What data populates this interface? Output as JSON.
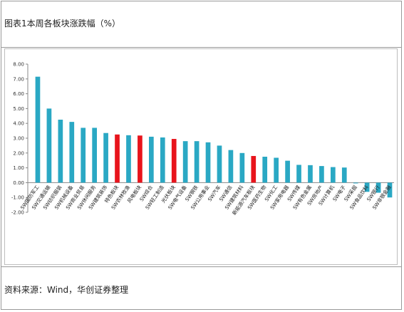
{
  "header": {
    "title": "图表1本周各板块涨跌幅（%）"
  },
  "footer": {
    "source": "资料来源：Wind，华创证券整理"
  },
  "colors": {
    "normal_bar": "#2aa8c4",
    "highlight_bar": "#e8141c",
    "axis": "#888888"
  },
  "chart_data": {
    "type": "bar",
    "title": "",
    "xlabel": "",
    "ylabel": "",
    "ylim": [
      -2.0,
      8.0
    ],
    "yticks": [
      "8.00",
      "7.00",
      "6.00",
      "5.00",
      "4.00",
      "3.00",
      "2.00",
      "1.00",
      "0.00",
      "-1.00",
      "-2.00"
    ],
    "grid": false,
    "categories": [
      "SW国防军工",
      "SW交通运输",
      "SW纺织服装",
      "SW机械设备",
      "SW商业贸易",
      "SW休闲服务",
      "SW建筑装饰",
      "特色板块",
      "SW农林牧渔",
      "风电板块",
      "SW综合",
      "SW轻工制造",
      "光伏板块",
      "SW电气设备",
      "SW钢铁",
      "SW公用事业",
      "SW汽车",
      "SW通信",
      "SW建筑材料",
      "新能源汽车板块",
      "SW医药生物",
      "SW化工",
      "SW家用电器",
      "SW传媒",
      "SW有色金属",
      "SW房地产",
      "SW计算机",
      "SW电子",
      "SW采掘",
      "SW食品饮料",
      "SW银行",
      "SW非银金融"
    ],
    "values": [
      7.15,
      5.0,
      4.25,
      4.1,
      3.7,
      3.7,
      3.35,
      3.25,
      3.2,
      3.18,
      3.1,
      3.05,
      2.95,
      2.8,
      2.8,
      2.72,
      2.5,
      2.2,
      2.0,
      1.8,
      1.75,
      1.68,
      1.48,
      1.2,
      1.18,
      1.12,
      1.05,
      1.02,
      -0.05,
      -0.62,
      -0.68,
      -1.0
    ],
    "highlighted": [
      false,
      false,
      false,
      false,
      false,
      false,
      false,
      true,
      false,
      true,
      false,
      false,
      true,
      false,
      false,
      false,
      false,
      false,
      false,
      true,
      false,
      false,
      false,
      false,
      false,
      false,
      false,
      false,
      false,
      false,
      false,
      false
    ]
  }
}
